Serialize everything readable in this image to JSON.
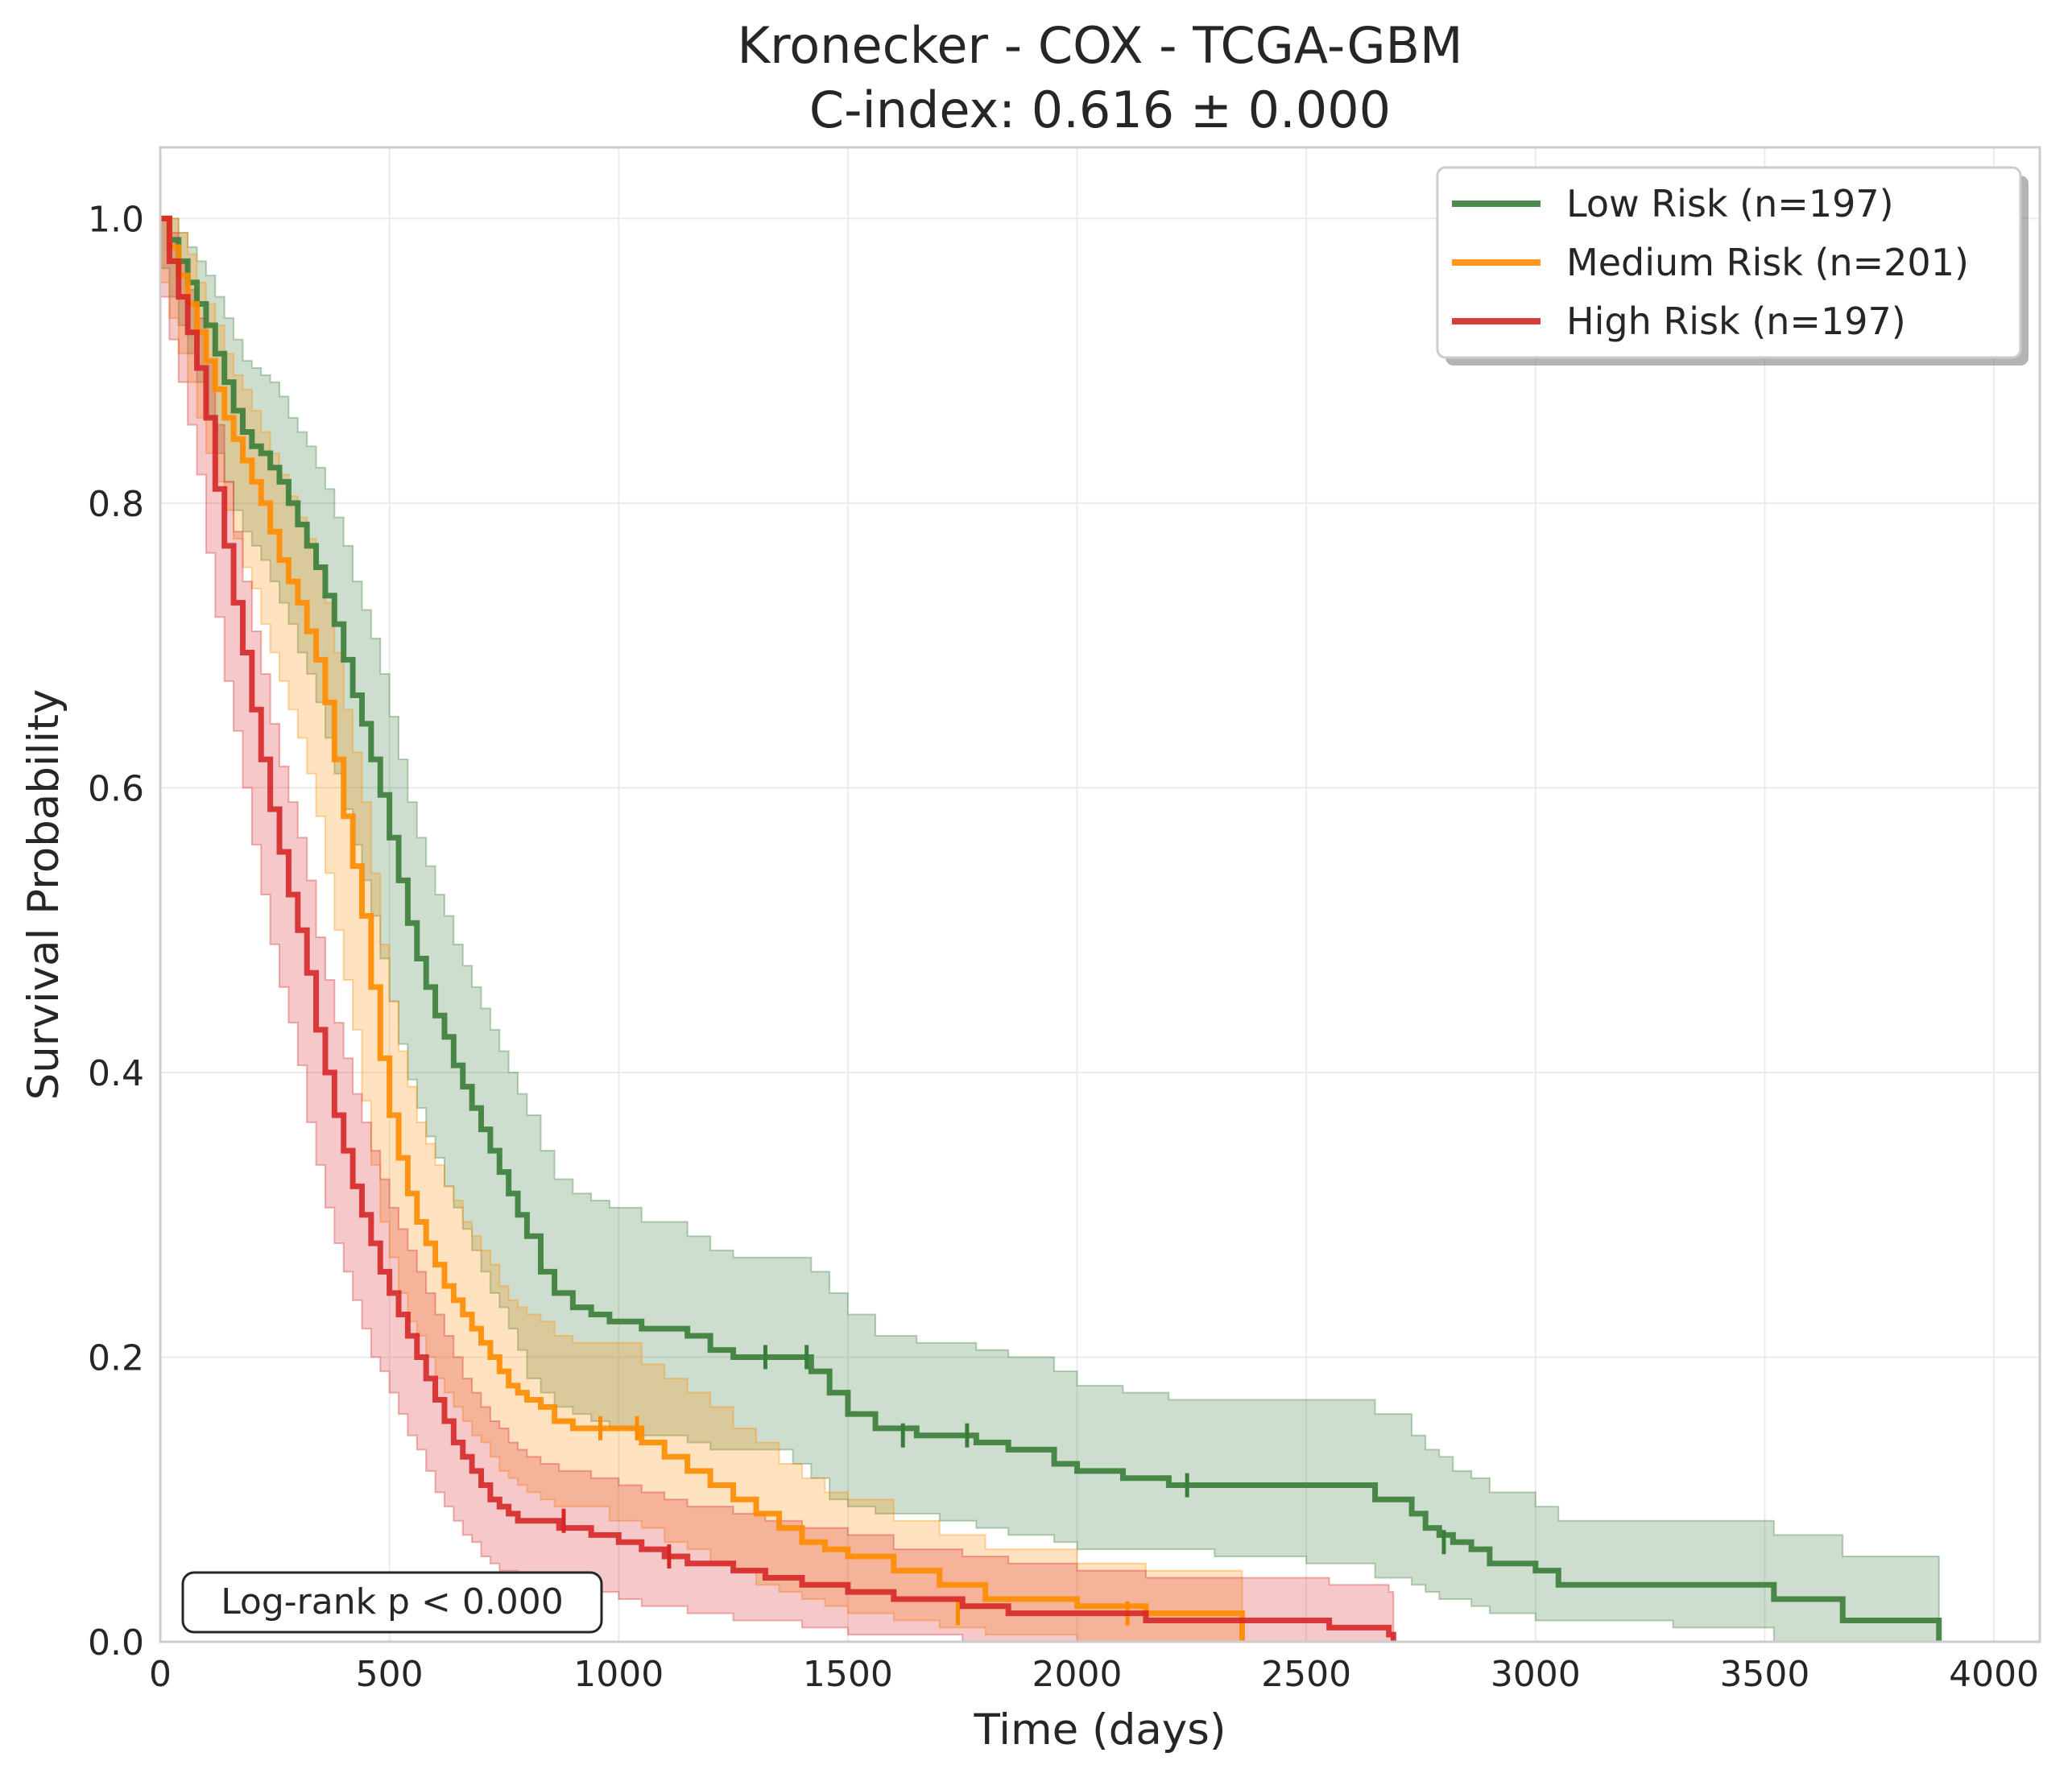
{
  "chart_data": {
    "type": "line",
    "title": "Kronecker - COX - TCGA-GBM",
    "subtitle": "C-index: 0.616 ± 0.000",
    "xlabel": "Time (days)",
    "ylabel": "Survival Probability",
    "xlim": [
      0,
      4100
    ],
    "ylim": [
      0,
      1.05
    ],
    "xticks": [
      0,
      500,
      1000,
      1500,
      2000,
      2500,
      3000,
      3500,
      4000
    ],
    "xtick_labels": [
      "0",
      "500",
      "1000",
      "1500",
      "2000",
      "2500",
      "3000",
      "3500",
      "4000"
    ],
    "yticks": [
      0.0,
      0.2,
      0.4,
      0.6,
      0.8,
      1.0
    ],
    "ytick_labels": [
      "0.0",
      "0.2",
      "0.4",
      "0.6",
      "0.8",
      "1.0"
    ],
    "grid": true,
    "legend_position": "top-right",
    "annotation": "Log-rank p < 0.000",
    "series": [
      {
        "name": "Low Risk (n=197)",
        "color": "#3a7d3a",
        "x": [
          0,
          20,
          40,
          60,
          80,
          100,
          120,
          140,
          160,
          180,
          200,
          220,
          240,
          260,
          280,
          300,
          320,
          340,
          360,
          380,
          400,
          420,
          440,
          460,
          480,
          500,
          520,
          540,
          560,
          580,
          600,
          620,
          640,
          660,
          680,
          700,
          720,
          740,
          760,
          780,
          800,
          830,
          860,
          900,
          940,
          980,
          1050,
          1150,
          1200,
          1250,
          1380,
          1420,
          1460,
          1500,
          1560,
          1650,
          1700,
          1780,
          1850,
          1950,
          2000,
          2100,
          2200,
          2300,
          2500,
          2650,
          2730,
          2760,
          2790,
          2820,
          2860,
          2900,
          3000,
          3050,
          3300,
          3520,
          3670,
          3870,
          3880
        ],
        "y": [
          1.0,
          0.985,
          0.97,
          0.955,
          0.94,
          0.925,
          0.905,
          0.885,
          0.865,
          0.85,
          0.84,
          0.835,
          0.825,
          0.815,
          0.8,
          0.785,
          0.77,
          0.755,
          0.735,
          0.715,
          0.69,
          0.665,
          0.645,
          0.62,
          0.595,
          0.565,
          0.535,
          0.505,
          0.48,
          0.46,
          0.44,
          0.425,
          0.405,
          0.39,
          0.375,
          0.36,
          0.345,
          0.33,
          0.315,
          0.3,
          0.285,
          0.26,
          0.245,
          0.235,
          0.23,
          0.225,
          0.22,
          0.215,
          0.205,
          0.2,
          0.2,
          0.19,
          0.175,
          0.16,
          0.15,
          0.145,
          0.145,
          0.14,
          0.135,
          0.125,
          0.12,
          0.115,
          0.11,
          0.11,
          0.11,
          0.1,
          0.09,
          0.08,
          0.075,
          0.07,
          0.065,
          0.055,
          0.05,
          0.04,
          0.04,
          0.03,
          0.015,
          0.015,
          0.0
        ],
        "ci_lower": [
          0.985,
          0.965,
          0.945,
          0.925,
          0.905,
          0.885,
          0.86,
          0.835,
          0.815,
          0.795,
          0.78,
          0.77,
          0.76,
          0.745,
          0.73,
          0.715,
          0.695,
          0.68,
          0.66,
          0.635,
          0.61,
          0.585,
          0.56,
          0.535,
          0.51,
          0.48,
          0.45,
          0.42,
          0.395,
          0.375,
          0.355,
          0.34,
          0.32,
          0.305,
          0.29,
          0.275,
          0.26,
          0.245,
          0.235,
          0.22,
          0.205,
          0.185,
          0.175,
          0.165,
          0.16,
          0.155,
          0.15,
          0.145,
          0.14,
          0.135,
          0.135,
          0.125,
          0.115,
          0.1,
          0.095,
          0.09,
          0.09,
          0.085,
          0.08,
          0.075,
          0.07,
          0.065,
          0.065,
          0.065,
          0.06,
          0.055,
          0.045,
          0.04,
          0.035,
          0.03,
          0.03,
          0.025,
          0.02,
          0.015,
          0.015,
          0.01,
          0.0,
          0.0,
          0.0
        ],
        "ci_upper": [
          1.0,
          1.0,
          0.99,
          0.98,
          0.97,
          0.96,
          0.945,
          0.93,
          0.915,
          0.9,
          0.895,
          0.89,
          0.885,
          0.875,
          0.86,
          0.85,
          0.84,
          0.825,
          0.81,
          0.79,
          0.77,
          0.745,
          0.725,
          0.705,
          0.68,
          0.65,
          0.62,
          0.59,
          0.565,
          0.545,
          0.525,
          0.51,
          0.49,
          0.475,
          0.46,
          0.445,
          0.43,
          0.415,
          0.4,
          0.385,
          0.37,
          0.345,
          0.325,
          0.315,
          0.31,
          0.305,
          0.295,
          0.285,
          0.275,
          0.27,
          0.27,
          0.26,
          0.245,
          0.23,
          0.215,
          0.21,
          0.21,
          0.205,
          0.2,
          0.19,
          0.18,
          0.175,
          0.17,
          0.17,
          0.17,
          0.16,
          0.145,
          0.135,
          0.13,
          0.12,
          0.115,
          0.105,
          0.095,
          0.085,
          0.085,
          0.075,
          0.06,
          0.06,
          0.06
        ],
        "censor_x": [
          1320,
          1410,
          1620,
          1760,
          2240,
          2800
        ],
        "censor_y": [
          0.2,
          0.2,
          0.145,
          0.145,
          0.11,
          0.07
        ]
      },
      {
        "name": "Medium Risk (n=201)",
        "color": "#ff8c00",
        "x": [
          0,
          20,
          40,
          60,
          80,
          100,
          120,
          140,
          160,
          180,
          200,
          220,
          240,
          260,
          280,
          300,
          320,
          340,
          360,
          380,
          400,
          420,
          440,
          460,
          480,
          500,
          520,
          540,
          560,
          580,
          600,
          620,
          640,
          660,
          680,
          700,
          720,
          740,
          760,
          780,
          800,
          830,
          860,
          900,
          940,
          980,
          1050,
          1100,
          1150,
          1200,
          1250,
          1300,
          1350,
          1400,
          1450,
          1500,
          1600,
          1700,
          1800,
          2000,
          2150,
          2350,
          2360
        ],
        "y": [
          1.0,
          0.98,
          0.96,
          0.94,
          0.92,
          0.9,
          0.88,
          0.86,
          0.845,
          0.83,
          0.815,
          0.8,
          0.78,
          0.76,
          0.745,
          0.73,
          0.71,
          0.69,
          0.66,
          0.62,
          0.58,
          0.545,
          0.51,
          0.46,
          0.41,
          0.37,
          0.34,
          0.315,
          0.295,
          0.28,
          0.265,
          0.25,
          0.24,
          0.23,
          0.22,
          0.21,
          0.2,
          0.19,
          0.18,
          0.175,
          0.17,
          0.165,
          0.155,
          0.15,
          0.15,
          0.15,
          0.14,
          0.13,
          0.12,
          0.11,
          0.1,
          0.09,
          0.08,
          0.07,
          0.065,
          0.06,
          0.05,
          0.04,
          0.03,
          0.025,
          0.02,
          0.02,
          0.0
        ],
        "ci_lower": [
          0.98,
          0.955,
          0.93,
          0.905,
          0.885,
          0.86,
          0.835,
          0.815,
          0.795,
          0.775,
          0.755,
          0.74,
          0.715,
          0.695,
          0.675,
          0.655,
          0.635,
          0.61,
          0.58,
          0.54,
          0.5,
          0.465,
          0.43,
          0.38,
          0.335,
          0.295,
          0.27,
          0.245,
          0.225,
          0.215,
          0.2,
          0.185,
          0.175,
          0.165,
          0.155,
          0.145,
          0.14,
          0.13,
          0.12,
          0.115,
          0.11,
          0.105,
          0.1,
          0.095,
          0.095,
          0.095,
          0.085,
          0.08,
          0.07,
          0.065,
          0.055,
          0.05,
          0.04,
          0.035,
          0.03,
          0.025,
          0.02,
          0.015,
          0.01,
          0.005,
          0.0,
          0.0,
          0.0
        ],
        "ci_upper": [
          1.0,
          1.0,
          0.99,
          0.975,
          0.955,
          0.94,
          0.925,
          0.905,
          0.89,
          0.88,
          0.865,
          0.85,
          0.835,
          0.82,
          0.805,
          0.79,
          0.775,
          0.755,
          0.73,
          0.695,
          0.655,
          0.625,
          0.59,
          0.54,
          0.49,
          0.45,
          0.415,
          0.39,
          0.365,
          0.35,
          0.335,
          0.32,
          0.31,
          0.295,
          0.285,
          0.275,
          0.265,
          0.25,
          0.24,
          0.235,
          0.23,
          0.225,
          0.215,
          0.21,
          0.21,
          0.21,
          0.195,
          0.185,
          0.175,
          0.165,
          0.15,
          0.14,
          0.125,
          0.115,
          0.105,
          0.1,
          0.085,
          0.075,
          0.065,
          0.055,
          0.05,
          0.05,
          0.05
        ],
        "censor_x": [
          960,
          1040,
          1740,
          2110
        ],
        "censor_y": [
          0.15,
          0.15,
          0.02,
          0.02
        ]
      },
      {
        "name": "High Risk (n=197)",
        "color": "#d62728",
        "x": [
          0,
          20,
          40,
          60,
          80,
          100,
          120,
          140,
          160,
          180,
          200,
          220,
          240,
          260,
          280,
          300,
          320,
          340,
          360,
          380,
          400,
          420,
          440,
          460,
          480,
          500,
          520,
          540,
          560,
          580,
          600,
          620,
          640,
          660,
          680,
          700,
          720,
          740,
          760,
          780,
          800,
          830,
          870,
          940,
          1000,
          1050,
          1100,
          1150,
          1250,
          1320,
          1400,
          1500,
          1600,
          1750,
          1850,
          2000,
          2150,
          2550,
          2680,
          2690
        ],
        "y": [
          1.0,
          0.97,
          0.945,
          0.92,
          0.895,
          0.86,
          0.81,
          0.77,
          0.73,
          0.695,
          0.655,
          0.62,
          0.585,
          0.555,
          0.525,
          0.5,
          0.47,
          0.43,
          0.4,
          0.37,
          0.345,
          0.32,
          0.3,
          0.28,
          0.26,
          0.245,
          0.23,
          0.215,
          0.2,
          0.185,
          0.17,
          0.155,
          0.14,
          0.13,
          0.12,
          0.11,
          0.1,
          0.095,
          0.09,
          0.085,
          0.085,
          0.085,
          0.08,
          0.075,
          0.07,
          0.065,
          0.06,
          0.055,
          0.05,
          0.045,
          0.04,
          0.035,
          0.03,
          0.025,
          0.02,
          0.02,
          0.015,
          0.01,
          0.005,
          0.0
        ],
        "ci_lower": [
          0.98,
          0.945,
          0.915,
          0.885,
          0.855,
          0.82,
          0.765,
          0.72,
          0.675,
          0.64,
          0.6,
          0.56,
          0.525,
          0.49,
          0.46,
          0.435,
          0.405,
          0.365,
          0.335,
          0.305,
          0.28,
          0.26,
          0.24,
          0.22,
          0.2,
          0.19,
          0.175,
          0.16,
          0.145,
          0.135,
          0.12,
          0.105,
          0.095,
          0.085,
          0.075,
          0.07,
          0.06,
          0.055,
          0.05,
          0.05,
          0.045,
          0.04,
          0.04,
          0.035,
          0.035,
          0.03,
          0.025,
          0.025,
          0.02,
          0.015,
          0.015,
          0.01,
          0.005,
          0.005,
          0.0,
          0.0,
          0.0,
          0.0,
          0.0,
          0.0
        ],
        "ci_upper": [
          1.0,
          0.99,
          0.97,
          0.95,
          0.93,
          0.9,
          0.855,
          0.815,
          0.78,
          0.745,
          0.71,
          0.68,
          0.645,
          0.615,
          0.59,
          0.565,
          0.535,
          0.495,
          0.465,
          0.435,
          0.41,
          0.385,
          0.365,
          0.345,
          0.325,
          0.305,
          0.29,
          0.275,
          0.26,
          0.245,
          0.23,
          0.215,
          0.2,
          0.185,
          0.175,
          0.165,
          0.155,
          0.15,
          0.14,
          0.135,
          0.13,
          0.125,
          0.12,
          0.115,
          0.11,
          0.105,
          0.1,
          0.095,
          0.09,
          0.085,
          0.08,
          0.075,
          0.065,
          0.06,
          0.055,
          0.05,
          0.045,
          0.04,
          0.035,
          0.035
        ],
        "censor_x": [
          880,
          1110
        ],
        "censor_y": [
          0.085,
          0.06
        ]
      }
    ]
  }
}
